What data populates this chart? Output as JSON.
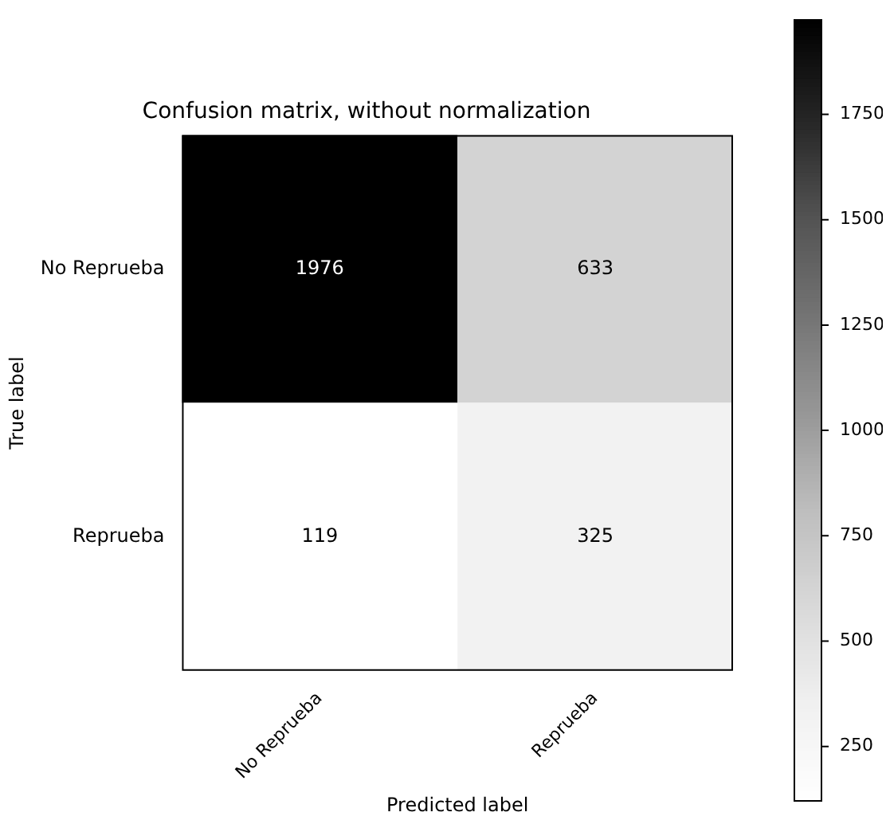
{
  "chart_data": {
    "type": "heatmap",
    "title": "Confusion matrix, without normalization",
    "xlabel": "Predicted label",
    "ylabel": "True label",
    "categories": [
      "No Reprueba",
      "Reprueba"
    ],
    "y_categories": [
      "No Reprueba",
      "Reprueba"
    ],
    "cells": [
      [
        1976,
        633
      ],
      [
        119,
        325
      ]
    ],
    "clim": [
      119,
      1976
    ],
    "cticks": [
      250,
      500,
      750,
      1000,
      1250,
      1500,
      1750
    ],
    "data_labels": true
  }
}
